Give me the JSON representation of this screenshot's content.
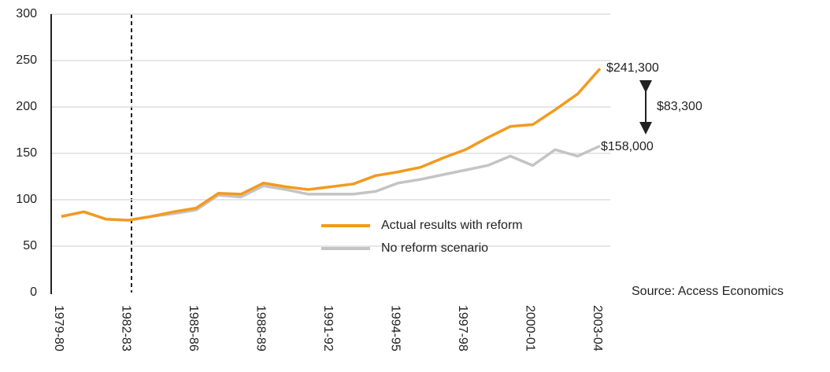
{
  "chart_data": {
    "type": "line",
    "categories": [
      "1979-80",
      null,
      null,
      "1982-83",
      null,
      null,
      "1985-86",
      null,
      null,
      "1988-89",
      null,
      null,
      "1991-92",
      null,
      null,
      "1994-95",
      null,
      null,
      "1997-98",
      null,
      null,
      "2000-01",
      null,
      null,
      "2003-04"
    ],
    "series": [
      {
        "name": "Actual results with reform",
        "color": "#f39a1e",
        "values": [
          82,
          87,
          79,
          78,
          82,
          87,
          91,
          107,
          106,
          118,
          114,
          111,
          114,
          117,
          126,
          130,
          135,
          145,
          154,
          167,
          179,
          181,
          197,
          214,
          241.3
        ]
      },
      {
        "name": "No reform scenario",
        "color": "#c4c4c4",
        "values": [
          82,
          87,
          79,
          78,
          82,
          85,
          89,
          105,
          103,
          115,
          111,
          106,
          106,
          106,
          109,
          118,
          122,
          127,
          132,
          137,
          147,
          137,
          154,
          147,
          158
        ]
      }
    ],
    "ylim": [
      0,
      300
    ],
    "yticks": [
      0,
      50,
      100,
      150,
      200,
      250,
      300
    ],
    "grid": true,
    "annotations": [
      "$241,300",
      "$158,000",
      "$83,300"
    ],
    "source": "Source: Access Economics"
  }
}
